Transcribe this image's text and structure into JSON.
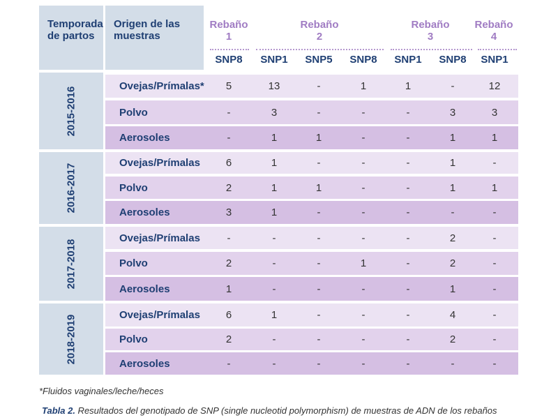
{
  "header": {
    "season_label": "Temporada\nde partos",
    "origin_label": "Origen de las\nmuestras",
    "herds": [
      {
        "label": "Rebaño\n1"
      },
      {
        "label": "Rebaño\n2"
      },
      {
        "label": "Rebaño\n3"
      },
      {
        "label": "Rebaño\n4"
      }
    ],
    "snp_columns": [
      "SNP8",
      "SNP1",
      "SNP5",
      "SNP8",
      "SNP1",
      "SNP8",
      "SNP1"
    ]
  },
  "seasons": [
    {
      "label": "2015-2016",
      "rows": [
        {
          "origin": "Ovejas/Prímalas*",
          "values": [
            "5",
            "13",
            "-",
            "1",
            "1",
            "-",
            "12"
          ]
        },
        {
          "origin": "Polvo",
          "values": [
            "-",
            "3",
            "-",
            "-",
            "-",
            "3",
            "3"
          ]
        },
        {
          "origin": "Aerosoles",
          "values": [
            "-",
            "1",
            "1",
            "-",
            "-",
            "1",
            "1"
          ]
        }
      ]
    },
    {
      "label": "2016-2017",
      "rows": [
        {
          "origin": "Ovejas/Prímalas",
          "values": [
            "6",
            "1",
            "-",
            "-",
            "-",
            "1",
            "-"
          ]
        },
        {
          "origin": "Polvo",
          "values": [
            "2",
            "1",
            "1",
            "-",
            "-",
            "1",
            "1"
          ]
        },
        {
          "origin": "Aerosoles",
          "values": [
            "3",
            "1",
            "-",
            "-",
            "-",
            "-",
            "-"
          ]
        }
      ]
    },
    {
      "label": "2017-2018",
      "rows": [
        {
          "origin": "Ovejas/Prímalas",
          "values": [
            "-",
            "-",
            "-",
            "-",
            "-",
            "2",
            "-"
          ]
        },
        {
          "origin": "Polvo",
          "values": [
            "2",
            "-",
            "-",
            "1",
            "-",
            "2",
            "-"
          ]
        },
        {
          "origin": "Aerosoles",
          "values": [
            "1",
            "-",
            "-",
            "-",
            "-",
            "1",
            "-"
          ]
        }
      ]
    },
    {
      "label": "2018-2019",
      "rows": [
        {
          "origin": "Ovejas/Prímalas",
          "values": [
            "6",
            "1",
            "-",
            "-",
            "-",
            "4",
            "-"
          ]
        },
        {
          "origin": "Polvo",
          "values": [
            "2",
            "-",
            "-",
            "-",
            "-",
            "2",
            "-"
          ]
        },
        {
          "origin": "Aerosoles",
          "values": [
            "-",
            "-",
            "-",
            "-",
            "-",
            "-",
            "-"
          ]
        }
      ]
    }
  ],
  "footnote": "*Fluidos vaginales/leche/heces",
  "caption": {
    "label": "Tabla 2.",
    "text": " Resultados del genotipado de SNP (single nucleotid polymorphism) de muestras de ADN de los rebaños"
  }
}
